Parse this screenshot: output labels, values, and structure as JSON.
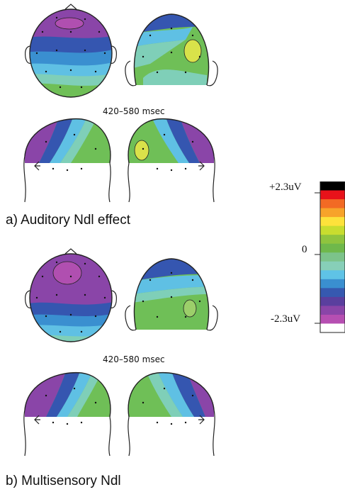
{
  "panels": [
    {
      "time_window": "420–580  msec",
      "caption": "a) Auditory Ndl effect"
    },
    {
      "time_window": "420–580  msec",
      "caption": "b) Multisensory Ndl"
    }
  ],
  "colorbar": {
    "max_label": "+2.3uV",
    "mid_label": "0",
    "min_label": "-2.3uV",
    "colors": [
      "#000000",
      "#e8121a",
      "#f26a24",
      "#f7a32a",
      "#fde23b",
      "#c8dd2f",
      "#8fc43e",
      "#6fb84b",
      "#7cc38a",
      "#87cfb8",
      "#5fc3e6",
      "#3a8fd0",
      "#3659b0",
      "#5a3f9e",
      "#8a45a8",
      "#b64fb2",
      "#ffffff"
    ]
  },
  "map_colors": {
    "green": "#6fbf57",
    "light_green": "#9ccf6a",
    "teal": "#7fcfb8",
    "cyan": "#5fc0e4",
    "blue": "#3a7fcc",
    "dark_blue": "#3556b0",
    "purple": "#7a3fa6",
    "magenta": "#b04fb0",
    "yellow": "#d9e24a"
  }
}
